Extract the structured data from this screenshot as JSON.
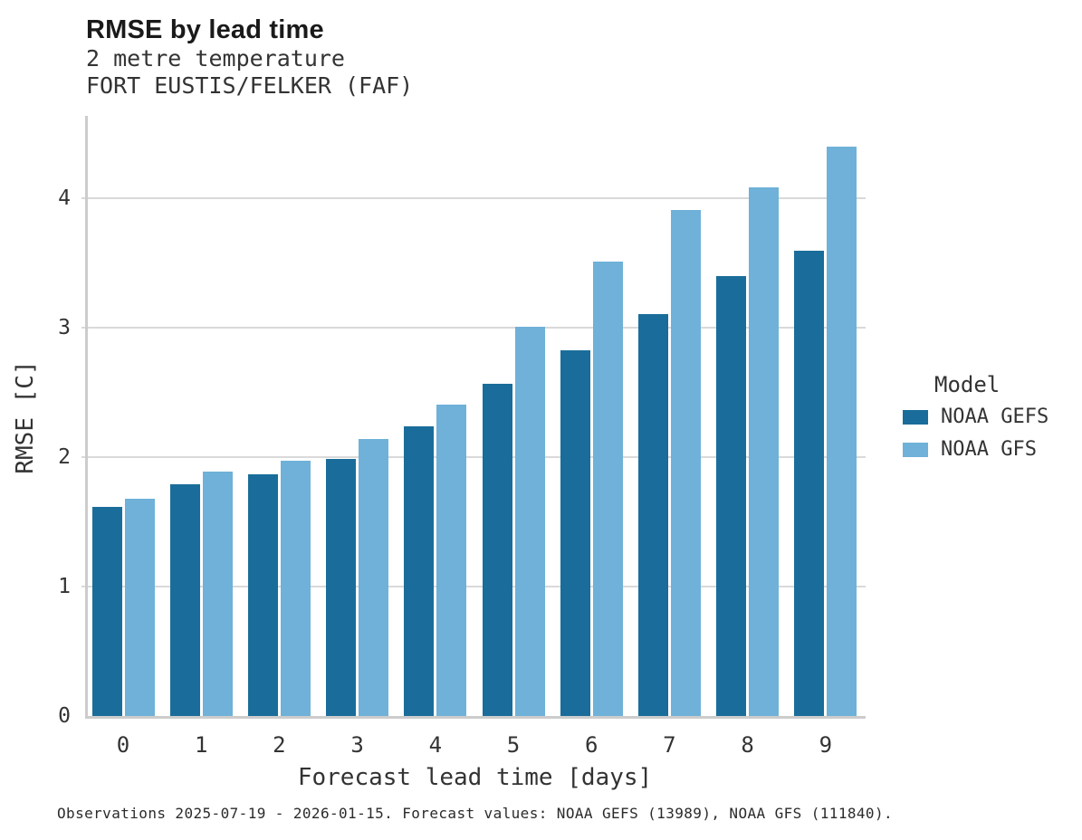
{
  "header": {
    "title": "RMSE by lead time",
    "subtitle_line1": "2 metre temperature",
    "subtitle_line2": "FORT EUSTIS/FELKER (FAF)"
  },
  "footer": {
    "note": "Observations 2025-07-19 - 2026-01-15. Forecast values: NOAA GEFS (13989), NOAA GFS (111840)."
  },
  "colors": {
    "gefs_dark_blue": "#1a6d9a",
    "gfs_light_blue": "#6fb1d8",
    "gridline": "#d9d9d9",
    "axis_spine": "#cccccc",
    "text": "#333333"
  },
  "chart_data": {
    "type": "bar",
    "title": "RMSE by lead time",
    "subtitle": [
      "2 metre temperature",
      "FORT EUSTIS/FELKER (FAF)"
    ],
    "categories": [
      "0",
      "1",
      "2",
      "3",
      "4",
      "5",
      "6",
      "7",
      "8",
      "9"
    ],
    "series": [
      {
        "name": "NOAA GEFS",
        "color": "#1a6d9a",
        "values": [
          1.62,
          1.79,
          1.87,
          1.99,
          2.24,
          2.57,
          2.83,
          3.11,
          3.4,
          3.6
        ]
      },
      {
        "name": "NOAA GFS",
        "color": "#6fb1d8",
        "values": [
          1.68,
          1.89,
          1.97,
          2.14,
          2.41,
          3.01,
          3.51,
          3.91,
          4.09,
          4.4
        ]
      }
    ],
    "xlabel": "Forecast lead time [days]",
    "ylabel": "RMSE [C]",
    "ylim": [
      0,
      4.64
    ],
    "yticks": [
      0,
      1,
      2,
      3,
      4
    ],
    "legend_title": "Model",
    "legend_position": "right",
    "grid": "horizontal",
    "caption": "Observations 2025-07-19 - 2026-01-15. Forecast values: NOAA GEFS (13989), NOAA GFS (111840)."
  }
}
